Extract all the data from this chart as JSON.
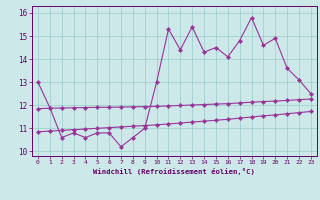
{
  "x": [
    0,
    1,
    2,
    3,
    4,
    5,
    6,
    7,
    8,
    9,
    10,
    11,
    12,
    13,
    14,
    15,
    16,
    17,
    18,
    19,
    20,
    21,
    22,
    23
  ],
  "y_main": [
    13.0,
    11.9,
    10.6,
    10.8,
    10.6,
    10.8,
    10.8,
    10.2,
    10.6,
    11.0,
    13.0,
    15.3,
    14.4,
    15.4,
    14.3,
    14.5,
    14.1,
    14.8,
    15.8,
    14.6,
    14.9,
    13.6,
    13.1,
    12.5
  ],
  "y_trend1": [
    11.85,
    11.87,
    11.88,
    11.89,
    11.9,
    11.91,
    11.91,
    11.92,
    11.93,
    11.94,
    11.95,
    11.97,
    11.99,
    12.01,
    12.03,
    12.05,
    12.07,
    12.1,
    12.13,
    12.16,
    12.18,
    12.21,
    12.24,
    12.27
  ],
  "y_trend2": [
    10.85,
    10.88,
    10.91,
    10.94,
    10.97,
    11.0,
    11.03,
    11.06,
    11.09,
    11.12,
    11.15,
    11.19,
    11.23,
    11.27,
    11.31,
    11.35,
    11.39,
    11.44,
    11.49,
    11.54,
    11.58,
    11.63,
    11.68,
    11.73
  ],
  "line_color": "#993399",
  "bg_color": "#cce8e8",
  "grid_color": "#99cccc",
  "text_color": "#660066",
  "xlabel": "Windchill (Refroidissement éolien,°C)",
  "ylim": [
    9.8,
    16.3
  ],
  "xlim": [
    -0.5,
    23.5
  ],
  "yticks": [
    10,
    11,
    12,
    13,
    14,
    15,
    16
  ],
  "xticks": [
    0,
    1,
    2,
    3,
    4,
    5,
    6,
    7,
    8,
    9,
    10,
    11,
    12,
    13,
    14,
    15,
    16,
    17,
    18,
    19,
    20,
    21,
    22,
    23
  ]
}
